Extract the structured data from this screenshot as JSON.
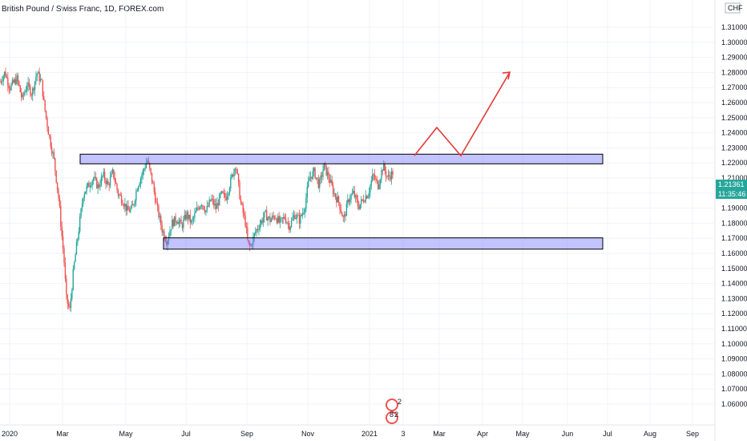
{
  "chart_data": {
    "type": "candlestick",
    "title": "British Pound / Swiss Franc, 1D, FOREX.com",
    "currency": "CHF",
    "ylim": [
      1.0588,
      1.3215
    ],
    "yticks": [
      "1.31000",
      "1.30000",
      "1.29000",
      "1.28000",
      "1.27000",
      "1.26000",
      "1.25000",
      "1.24000",
      "1.23000",
      "1.22000",
      "1.21000",
      "1.20000",
      "1.19000",
      "1.18000",
      "1.17000",
      "1.16000",
      "1.15000",
      "1.14000",
      "1.13000",
      "1.12000",
      "1.11000",
      "1.10000",
      "1.09000",
      "1.08000",
      "1.07000",
      "1.06000"
    ],
    "xticks": [
      "2020",
      "Mar",
      "May",
      "Jul",
      "Sep",
      "Nov",
      "2021",
      "3",
      "Mar",
      "Apr",
      "May",
      "Jun",
      "Jul",
      "Aug",
      "Sep"
    ],
    "last_price": "1.21361",
    "countdown": "11:35:46",
    "up_color": "#26a69a",
    "down_color": "#ef5350",
    "price_path": [
      [
        0.0,
        1.274
      ],
      [
        0.01,
        1.28
      ],
      [
        0.02,
        1.27
      ],
      [
        0.035,
        1.276
      ],
      [
        0.045,
        1.262
      ],
      [
        0.055,
        1.272
      ],
      [
        0.065,
        1.266
      ],
      [
        0.075,
        1.28
      ],
      [
        0.085,
        1.273
      ],
      [
        0.09,
        1.258
      ],
      [
        0.1,
        1.238
      ],
      [
        0.11,
        1.222
      ],
      [
        0.12,
        1.195
      ],
      [
        0.125,
        1.175
      ],
      [
        0.13,
        1.158
      ],
      [
        0.135,
        1.13
      ],
      [
        0.142,
        1.122
      ],
      [
        0.15,
        1.15
      ],
      [
        0.16,
        1.175
      ],
      [
        0.17,
        1.2
      ],
      [
        0.18,
        1.205
      ],
      [
        0.19,
        1.21
      ],
      [
        0.2,
        1.204
      ],
      [
        0.21,
        1.212
      ],
      [
        0.22,
        1.205
      ],
      [
        0.23,
        1.214
      ],
      [
        0.24,
        1.2
      ],
      [
        0.25,
        1.195
      ],
      [
        0.26,
        1.188
      ],
      [
        0.27,
        1.19
      ],
      [
        0.28,
        1.205
      ],
      [
        0.29,
        1.213
      ],
      [
        0.3,
        1.222
      ],
      [
        0.31,
        1.208
      ],
      [
        0.32,
        1.19
      ],
      [
        0.33,
        1.176
      ],
      [
        0.34,
        1.168
      ],
      [
        0.35,
        1.18
      ],
      [
        0.36,
        1.183
      ],
      [
        0.37,
        1.178
      ],
      [
        0.38,
        1.186
      ],
      [
        0.39,
        1.18
      ],
      [
        0.4,
        1.188
      ],
      [
        0.41,
        1.194
      ],
      [
        0.42,
        1.188
      ],
      [
        0.43,
        1.196
      ],
      [
        0.44,
        1.19
      ],
      [
        0.45,
        1.199
      ],
      [
        0.46,
        1.197
      ],
      [
        0.47,
        1.208
      ],
      [
        0.48,
        1.22
      ],
      [
        0.49,
        1.194
      ],
      [
        0.5,
        1.18
      ],
      [
        0.505,
        1.166
      ],
      [
        0.51,
        1.164
      ],
      [
        0.52,
        1.174
      ],
      [
        0.53,
        1.18
      ],
      [
        0.54,
        1.186
      ],
      [
        0.55,
        1.182
      ],
      [
        0.56,
        1.185
      ],
      [
        0.57,
        1.18
      ],
      [
        0.58,
        1.184
      ],
      [
        0.59,
        1.178
      ],
      [
        0.6,
        1.186
      ],
      [
        0.61,
        1.182
      ],
      [
        0.62,
        1.19
      ],
      [
        0.63,
        1.21
      ],
      [
        0.64,
        1.214
      ],
      [
        0.65,
        1.205
      ],
      [
        0.66,
        1.218
      ],
      [
        0.67,
        1.21
      ],
      [
        0.68,
        1.2
      ],
      [
        0.69,
        1.194
      ],
      [
        0.7,
        1.182
      ],
      [
        0.71,
        1.196
      ],
      [
        0.72,
        1.2
      ],
      [
        0.73,
        1.191
      ],
      [
        0.74,
        1.196
      ],
      [
        0.75,
        1.2
      ],
      [
        0.76,
        1.212
      ],
      [
        0.77,
        1.205
      ],
      [
        0.78,
        1.218
      ],
      [
        0.79,
        1.21
      ],
      [
        0.8,
        1.2136
      ]
    ],
    "zones": [
      {
        "name": "resistance",
        "top": 1.2258,
        "bottom": 1.2194,
        "x_start": "Feb 2020",
        "x_end": "Jul 2021"
      },
      {
        "name": "support",
        "top": 1.1703,
        "bottom": 1.1628,
        "x_start": "Jun 2020",
        "x_end": "Jul 2021"
      }
    ],
    "projection": [
      {
        "date": "Feb 2021",
        "price": 1.2248
      },
      {
        "date": "Feb 2021",
        "price": 1.2435
      },
      {
        "date": "Mar 2021",
        "price": 1.2248
      },
      {
        "date": "Apr 2021",
        "price": 1.2802
      }
    ],
    "legend_glyph": "2\n8 2"
  }
}
